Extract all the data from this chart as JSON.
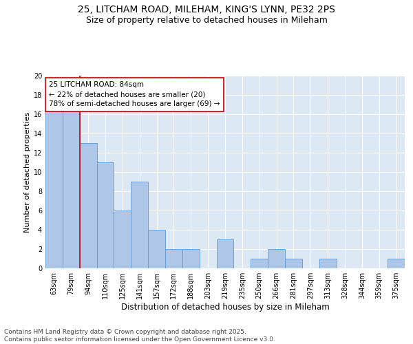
{
  "title_line1": "25, LITCHAM ROAD, MILEHAM, KING'S LYNN, PE32 2PS",
  "title_line2": "Size of property relative to detached houses in Mileham",
  "categories": [
    "63sqm",
    "79sqm",
    "94sqm",
    "110sqm",
    "125sqm",
    "141sqm",
    "157sqm",
    "172sqm",
    "188sqm",
    "203sqm",
    "219sqm",
    "235sqm",
    "250sqm",
    "266sqm",
    "281sqm",
    "297sqm",
    "313sqm",
    "328sqm",
    "344sqm",
    "359sqm",
    "375sqm"
  ],
  "values": [
    17,
    17,
    13,
    11,
    6,
    9,
    4,
    2,
    2,
    0,
    3,
    0,
    1,
    2,
    1,
    0,
    1,
    0,
    0,
    0,
    1
  ],
  "bar_color": "#aec6e8",
  "bar_edge_color": "#5b9bd5",
  "background_color": "#dde8f5",
  "grid_color": "#ffffff",
  "ylabel": "Number of detached properties",
  "xlabel": "Distribution of detached houses by size in Mileham",
  "ylim": [
    0,
    20
  ],
  "yticks": [
    0,
    2,
    4,
    6,
    8,
    10,
    12,
    14,
    16,
    18,
    20
  ],
  "annotation_text": "25 LITCHAM ROAD: 84sqm\n← 22% of detached houses are smaller (20)\n78% of semi-detached houses are larger (69) →",
  "vline_x": 1.5,
  "vline_color": "#cc0000",
  "box_color": "#cc0000",
  "footer_text": "Contains HM Land Registry data © Crown copyright and database right 2025.\nContains public sector information licensed under the Open Government Licence v3.0.",
  "title_fontsize": 10,
  "subtitle_fontsize": 9,
  "annot_fontsize": 7.5,
  "footer_fontsize": 6.5,
  "ylabel_fontsize": 8,
  "xlabel_fontsize": 8.5,
  "tick_fontsize": 7
}
